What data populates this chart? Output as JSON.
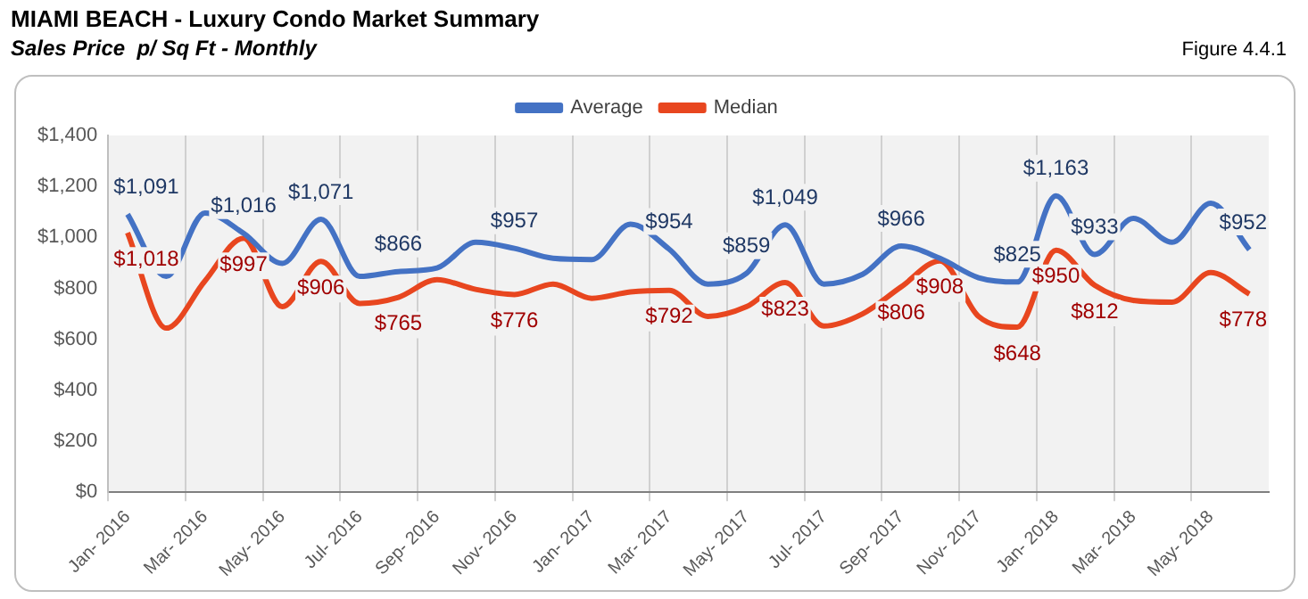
{
  "chart_data": {
    "type": "line",
    "title": "MIAMI BEACH - Luxury Condo Market Summary",
    "subtitle": "Sales Price  p/ Sq Ft - Monthly",
    "annotations": [
      "Figure 4.4.1"
    ],
    "categories": [
      "Jan- 2016",
      null,
      "Mar- 2016",
      null,
      "May- 2016",
      null,
      "Jul- 2016",
      null,
      "Sep- 2016",
      null,
      "Nov- 2016",
      null,
      "Jan- 2017",
      null,
      "Mar- 2017",
      null,
      "May- 2017",
      null,
      "Jul- 2017",
      null,
      "Sep- 2017",
      null,
      "Nov- 2017",
      null,
      "Jan- 2018",
      null,
      "Mar- 2018",
      null,
      "May- 2018",
      null
    ],
    "series": [
      {
        "name": "Average",
        "color": "#4472c4",
        "values": [
          1091,
          847,
          1096,
          1016,
          898,
          1071,
          847,
          866,
          880,
          981,
          957,
          918,
          913,
          1052,
          954,
          817,
          859,
          1049,
          817,
          855,
          966,
          918,
          842,
          825,
          1163,
          933,
          1075,
          981,
          1134,
          952
        ],
        "value_labels": [
          "$1,091",
          null,
          null,
          "$1,016",
          null,
          "$1,071",
          null,
          "$866",
          null,
          null,
          "$957",
          null,
          null,
          null,
          "$954",
          null,
          "$859",
          "$1,049",
          null,
          null,
          "$966",
          null,
          null,
          "$825",
          "$1,163",
          "$933",
          null,
          null,
          null,
          "$952"
        ]
      },
      {
        "name": "Median",
        "color": "#e8461f",
        "values": [
          1018,
          644,
          829,
          997,
          728,
          906,
          741,
          765,
          834,
          796,
          776,
          817,
          761,
          786,
          792,
          690,
          728,
          823,
          652,
          700,
          806,
          908,
          690,
          648,
          950,
          812,
          753,
          746,
          862,
          778
        ],
        "value_labels": [
          "$1,018",
          null,
          null,
          "$997",
          null,
          "$906",
          null,
          "$765",
          null,
          null,
          "$776",
          null,
          null,
          null,
          "$792",
          null,
          null,
          "$823",
          null,
          null,
          "$806",
          "$908",
          null,
          "$648",
          "$950",
          "$812",
          null,
          null,
          null,
          "$778"
        ]
      }
    ],
    "ylim": [
      0,
      1400
    ],
    "yticks": [
      {
        "value": 0,
        "label": "$0"
      },
      {
        "value": 200,
        "label": "$200"
      },
      {
        "value": 400,
        "label": "$400"
      },
      {
        "value": 600,
        "label": "$600"
      },
      {
        "value": 800,
        "label": "$800"
      },
      {
        "value": 1000,
        "label": "$1,000"
      },
      {
        "value": 1200,
        "label": "$1,200"
      },
      {
        "value": 1400,
        "label": "$1,400"
      }
    ],
    "grid": "x",
    "legend": "top",
    "marker": "none",
    "line_style": "solid"
  }
}
